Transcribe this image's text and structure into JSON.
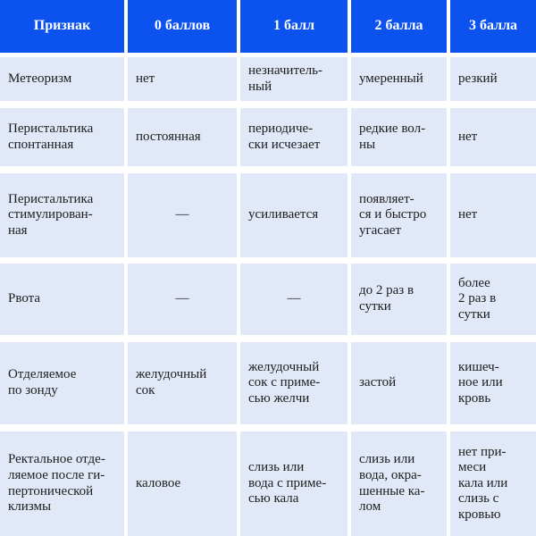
{
  "colors": {
    "header_bg": "#0c52ee",
    "cell_bg": "#e1e8f8",
    "header_text": "#ffffff",
    "body_text": "#1d1d1b",
    "page_bg": "#ffffff"
  },
  "table": {
    "headers": {
      "feature": "Признак",
      "score0": "0 баллов",
      "score1": "1 балл",
      "score2": "2 балла",
      "score3": "3 балла"
    },
    "rows": [
      {
        "feature": "Метеоризм",
        "score0": "нет",
        "score1": "незначитель-\nный",
        "score2": "умеренный",
        "score3": "резкий"
      },
      {
        "feature": "Перистальтика\nспонтанная",
        "score0": "постоянная",
        "score1": "периодиче-\nски исчезает",
        "score2": "редкие вол-\nны",
        "score3": "нет"
      },
      {
        "feature": "Перистальтика\nстимулирован-\nная",
        "score0": "—",
        "score1": "усиливается",
        "score2": "появляет-\nся и быстро\nугасает",
        "score3": "нет"
      },
      {
        "feature": "Рвота",
        "score0": "—",
        "score1": "—",
        "score2": "до 2 раз в\nсутки",
        "score3": "более\n2 раз в\nсутки"
      },
      {
        "feature": "Отделяемое\nпо зонду",
        "score0": "желудочный\nсок",
        "score1": "желудочный\nсок с приме-\nсью желчи",
        "score2": "застой",
        "score3": "кишеч-\nное или\nкровь"
      },
      {
        "feature": "Ректальное отде-\nляемое после ги-\nпертонической\nклизмы",
        "score0": "каловое",
        "score1": "слизь или\nвода с приме-\nсью кала",
        "score2": "слизь или\nвода, окра-\nшенные ка-\nлом",
        "score3": "нет при-\nмеси\nкала или\nслизь с\nкровью"
      }
    ]
  }
}
